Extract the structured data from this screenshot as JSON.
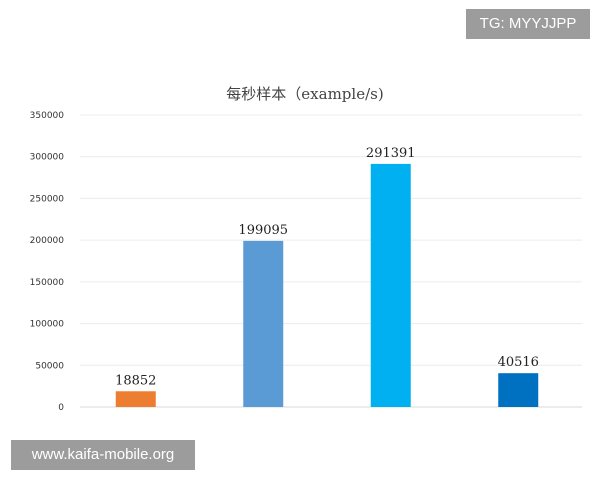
{
  "watermarks": {
    "top_right": "TG: MYYJJPP",
    "bottom_left": "www.kaifa-mobile.org"
  },
  "chart_data": {
    "type": "bar",
    "title": "每秒样本（example/s)",
    "xlabel": "",
    "ylabel": "",
    "categories": [
      "",
      "",
      "",
      ""
    ],
    "values": [
      18852,
      199095,
      291391,
      40516
    ],
    "data_labels": [
      "18852",
      "199095",
      "291391",
      "40516"
    ],
    "bar_colors": [
      "#ed7d31",
      "#5b9bd5",
      "#00b0f0",
      "#0070c0"
    ],
    "ylim": [
      0,
      350000
    ],
    "yticks": [
      0,
      50000,
      100000,
      150000,
      200000,
      250000,
      300000,
      350000
    ],
    "ytick_labels": [
      "0",
      "50000",
      "100000",
      "150000",
      "200000",
      "250000",
      "300000",
      "350000"
    ],
    "grid": true,
    "legend": "none"
  }
}
